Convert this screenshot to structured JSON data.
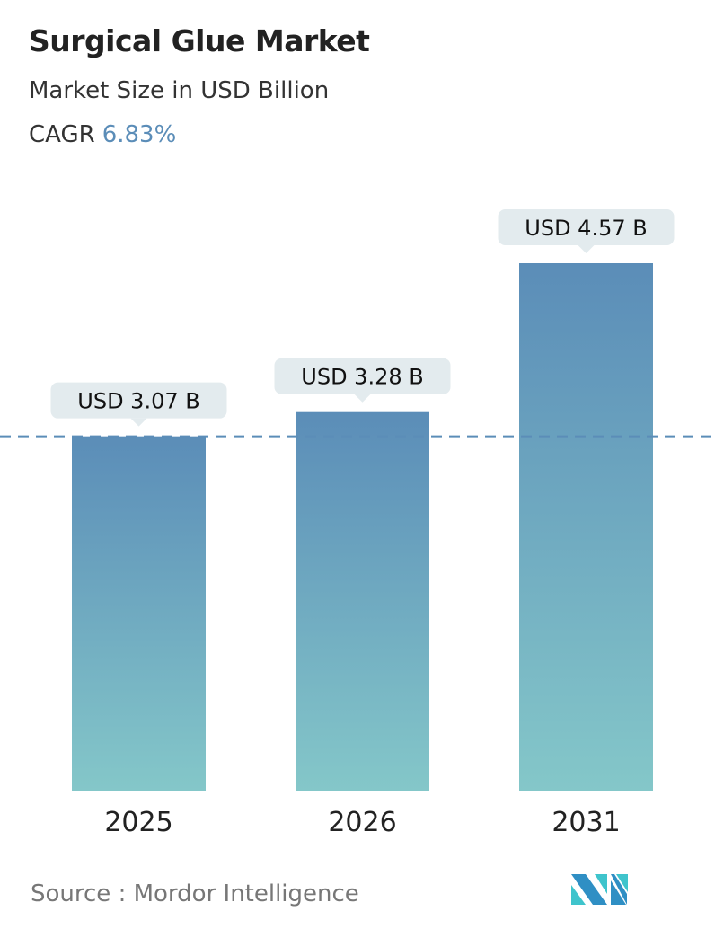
{
  "title": "Surgical Glue Market",
  "subtitle": "Market Size in USD Billion",
  "cagr_label": "CAGR",
  "cagr_value": "6.83%",
  "source": "Source :  Mordor Intelligence",
  "logo_text": "Mordor Intelligence",
  "colors": {
    "bar_top": "#5b8db8",
    "bar_bottom": "#84c7c9",
    "label_bg": "#e3ebee",
    "dashed_line": "#5b8db8",
    "cagr": "#5b8db8"
  },
  "chart_data": {
    "type": "bar",
    "categories": [
      "2025",
      "2026",
      "2031"
    ],
    "values": [
      3.07,
      3.28,
      4.57
    ],
    "data_labels": [
      "USD 3.07 B",
      "USD 3.28 B",
      "USD 4.57 B"
    ],
    "reference_line": {
      "value": 3.07,
      "style": "dashed"
    },
    "ylim": [
      0,
      4.57
    ],
    "grid": false,
    "xlabel": "",
    "ylabel": ""
  }
}
